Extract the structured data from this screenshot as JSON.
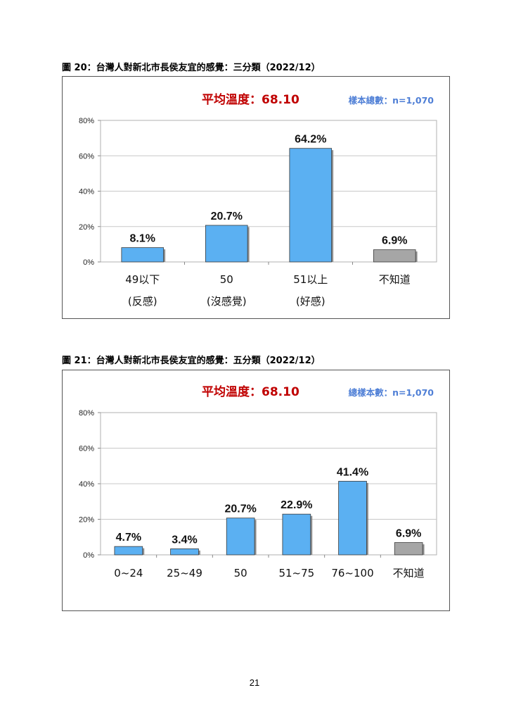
{
  "figures": [
    {
      "caption": "圖 20：台灣人對新北市長侯友宜的感覺：三分類（2022/12）",
      "mean_label": "平均溫度：68.10",
      "sample_label": "樣本總數：n=1,070",
      "chart_data": {
        "type": "bar",
        "categories": [
          "49以下\n(反感)",
          "50\n(沒感覺)",
          "51以上\n(好感)",
          "不知道"
        ],
        "values": [
          8.1,
          20.7,
          64.2,
          6.9
        ],
        "value_labels": [
          "8.1%",
          "20.7%",
          "64.2%",
          "6.9%"
        ],
        "bar_colors": [
          "#5BB0F2",
          "#5BB0F2",
          "#5BB0F2",
          "#A6A6A6"
        ],
        "yticks": [
          "0%",
          "20%",
          "40%",
          "60%",
          "80%"
        ],
        "ylim": [
          0,
          80
        ],
        "grid": true
      }
    },
    {
      "caption": "圖 21：台灣人對新北市長侯友宜的感覺：五分類（2022/12）",
      "mean_label": "平均溫度：68.10",
      "sample_label": "總樣本數：n=1,070",
      "chart_data": {
        "type": "bar",
        "categories": [
          "0~24",
          "25~49",
          "50",
          "51~75",
          "76~100",
          "不知道"
        ],
        "values": [
          4.7,
          3.4,
          20.7,
          22.9,
          41.4,
          6.9
        ],
        "value_labels": [
          "4.7%",
          "3.4%",
          "20.7%",
          "22.9%",
          "41.4%",
          "6.9%"
        ],
        "bar_colors": [
          "#5BB0F2",
          "#5BB0F2",
          "#5BB0F2",
          "#5BB0F2",
          "#5BB0F2",
          "#A6A6A6"
        ],
        "yticks": [
          "0%",
          "20%",
          "40%",
          "60%",
          "80%"
        ],
        "ylim": [
          0,
          80
        ],
        "grid": true
      }
    }
  ],
  "page_number": "21"
}
